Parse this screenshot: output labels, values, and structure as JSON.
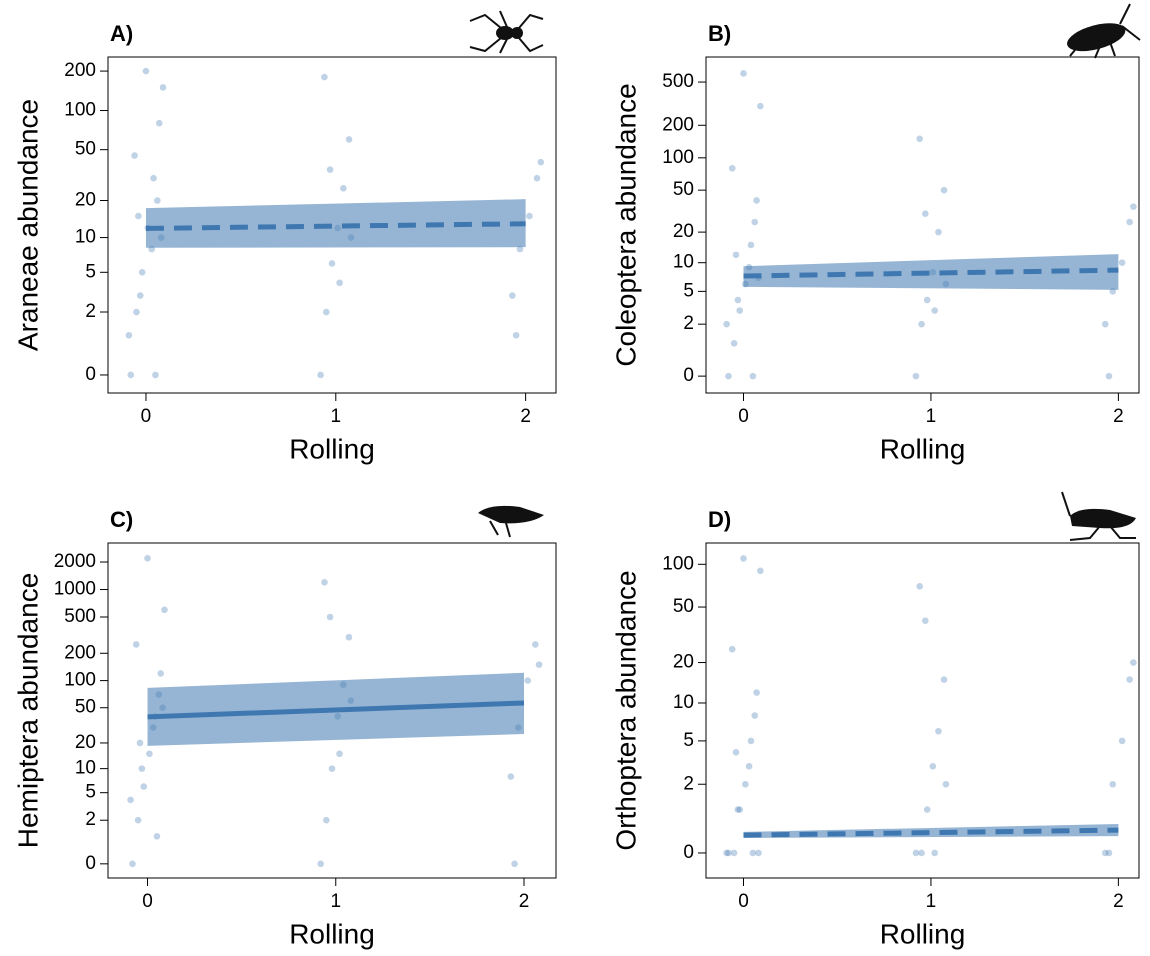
{
  "chart_data": [
    {
      "type": "scatter",
      "title": "A)",
      "x_label": "Rolling",
      "y_label": "Araneae abundance",
      "xlim": [
        -0.2,
        2.16
      ],
      "ylim": [
        -0.27,
        256
      ],
      "xticks": [
        0,
        1,
        2
      ],
      "yticks": [
        0,
        2,
        5,
        10,
        20,
        50,
        100,
        200
      ],
      "yscale": "log1p",
      "points": {
        "color": "#4a7fb5",
        "x": [
          -0.08,
          -0.05,
          -0.02,
          0.01,
          0.04,
          0.07,
          0.09,
          -0.09,
          -0.03,
          0.03,
          0.06,
          -0.06,
          0.0,
          0.08,
          -0.04,
          0.05,
          0.92,
          0.95,
          0.98,
          1.01,
          1.04,
          1.07,
          0.94,
          1.02,
          1.08,
          0.97,
          1.93,
          1.97,
          2.02,
          2.06,
          1.95,
          2.08
        ],
        "y": [
          0,
          2,
          5,
          12,
          30,
          80,
          150,
          1,
          3,
          8,
          20,
          45,
          200,
          10,
          15,
          0,
          0,
          2,
          6,
          12,
          25,
          60,
          180,
          4,
          10,
          35,
          3,
          8,
          15,
          30,
          1,
          40
        ]
      },
      "fit": {
        "color": "#3f78b0",
        "linestyle": "dashed",
        "x": [
          0,
          2
        ],
        "y": [
          11.9,
          13
        ],
        "lower": [
          8.2,
          8.3
        ],
        "upper": [
          17.4,
          20.5
        ]
      }
    },
    {
      "type": "scatter",
      "title": "B)",
      "x_label": "Rolling",
      "y_label": "Coleoptera abundance",
      "xlim": [
        -0.2,
        2.11
      ],
      "ylim": [
        -0.3,
        850
      ],
      "xticks": [
        0,
        1,
        2
      ],
      "yticks": [
        0,
        2,
        5,
        10,
        20,
        50,
        100,
        200,
        500
      ],
      "yscale": "log1p",
      "points": {
        "color": "#4a7fb5",
        "x": [
          -0.08,
          -0.05,
          -0.02,
          0.01,
          0.04,
          0.07,
          0.09,
          -0.09,
          -0.03,
          0.03,
          0.06,
          -0.06,
          0.0,
          0.08,
          -0.04,
          0.05,
          0.92,
          0.95,
          0.98,
          1.01,
          1.04,
          1.07,
          0.94,
          1.02,
          1.08,
          0.97,
          1.93,
          1.97,
          2.02,
          2.06,
          1.95,
          2.08
        ],
        "y": [
          0,
          1,
          3,
          6,
          15,
          40,
          300,
          2,
          4,
          9,
          25,
          80,
          600,
          7,
          12,
          0,
          0,
          2,
          4,
          8,
          20,
          50,
          150,
          3,
          6,
          30,
          2,
          5,
          10,
          25,
          0,
          35
        ]
      },
      "fit": {
        "color": "#3f78b0",
        "linestyle": "dashed",
        "x": [
          0,
          2
        ],
        "y": [
          7.3,
          8.4
        ],
        "lower": [
          5.6,
          5.2
        ],
        "upper": [
          9.2,
          12.2
        ]
      }
    },
    {
      "type": "scatter",
      "title": "C)",
      "x_label": "Rolling",
      "y_label": "Hemiptera abundance",
      "xlim": [
        -0.21,
        2.17
      ],
      "ylim": [
        -0.3,
        3230
      ],
      "xticks": [
        0,
        1,
        2
      ],
      "yticks": [
        0,
        2,
        5,
        10,
        20,
        50,
        100,
        200,
        500,
        1000,
        2000
      ],
      "yscale": "log1p",
      "points": {
        "color": "#4a7fb5",
        "x": [
          -0.08,
          -0.05,
          -0.02,
          0.01,
          0.04,
          0.07,
          0.09,
          -0.09,
          -0.03,
          0.03,
          0.06,
          -0.06,
          0.0,
          0.08,
          -0.04,
          0.05,
          0.92,
          0.95,
          0.98,
          1.01,
          1.04,
          1.07,
          0.94,
          1.02,
          1.08,
          0.97,
          1.93,
          1.97,
          2.02,
          2.06,
          1.95,
          2.08
        ],
        "y": [
          0,
          2,
          6,
          15,
          40,
          120,
          600,
          4,
          10,
          30,
          70,
          250,
          2200,
          50,
          20,
          1,
          0,
          2,
          10,
          40,
          90,
          300,
          1200,
          15,
          60,
          500,
          8,
          30,
          100,
          250,
          0,
          150
        ]
      },
      "fit": {
        "color": "#3f78b0",
        "linestyle": "solid",
        "x": [
          0,
          2
        ],
        "y": [
          39.5,
          56.5
        ],
        "lower": [
          18.5,
          25.3
        ],
        "upper": [
          83,
          122
        ]
      }
    },
    {
      "type": "scatter",
      "title": "D)",
      "x_label": "Rolling",
      "y_label": "Orthoptera abundance",
      "xlim": [
        -0.2,
        2.11
      ],
      "ylim": [
        -0.33,
        141
      ],
      "xticks": [
        0,
        1,
        2
      ],
      "yticks": [
        0,
        2,
        5,
        10,
        20,
        50,
        100
      ],
      "yscale": "log1p",
      "points": {
        "color": "#4a7fb5",
        "x": [
          -0.08,
          -0.05,
          -0.02,
          0.01,
          0.04,
          0.07,
          0.09,
          -0.09,
          -0.03,
          0.03,
          0.06,
          -0.06,
          0.0,
          0.08,
          -0.04,
          0.05,
          0.92,
          0.95,
          0.98,
          1.01,
          1.04,
          1.07,
          0.94,
          1.02,
          1.08,
          0.97,
          1.93,
          1.97,
          2.02,
          2.06,
          1.95,
          2.08
        ],
        "y": [
          0,
          0,
          1,
          2,
          5,
          12,
          90,
          0,
          1,
          3,
          8,
          25,
          110,
          0,
          4,
          0,
          0,
          0,
          1,
          3,
          6,
          15,
          70,
          0,
          2,
          40,
          0,
          2,
          5,
          15,
          0,
          20
        ]
      },
      "fit": {
        "color": "#3f78b0",
        "linestyle": "dashed",
        "x": [
          0,
          2
        ],
        "y": [
          0.33,
          0.44
        ],
        "lower": [
          0.27,
          0.31
        ],
        "upper": [
          0.4,
          0.59
        ]
      }
    }
  ]
}
